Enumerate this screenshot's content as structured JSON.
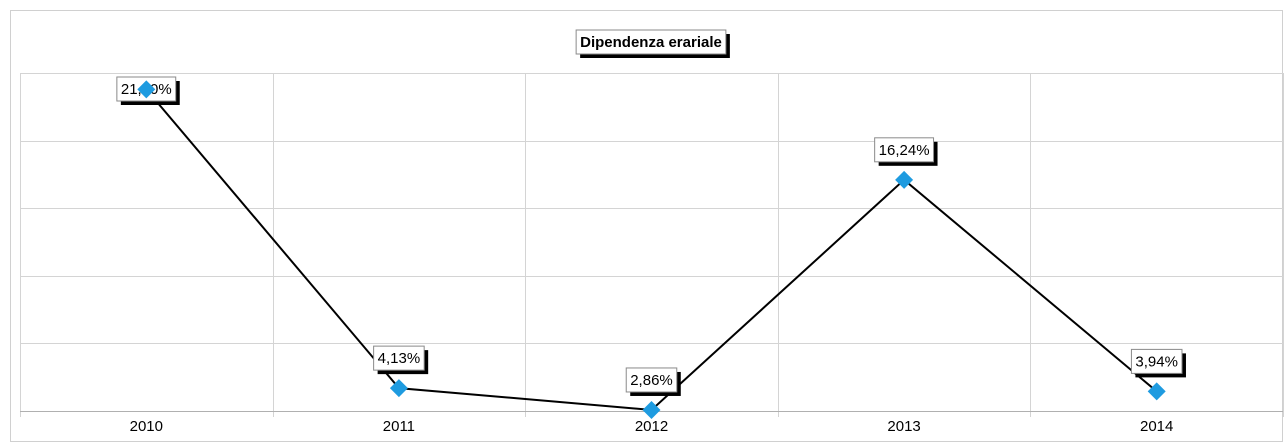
{
  "chart_data": {
    "type": "line",
    "title": "Dipendenza erariale",
    "categories": [
      "2010",
      "2011",
      "2012",
      "2013",
      "2014"
    ],
    "series": [
      {
        "name": "Dipendenza erariale",
        "color": "#1e9be0",
        "values": [
          21.5,
          4.13,
          2.86,
          16.24,
          3.94
        ],
        "value_labels": [
          "21,50%",
          "4,13%",
          "2,86%",
          "16,24%",
          "3,94%"
        ]
      }
    ],
    "ylim": [
      2.8,
      22.45
    ],
    "yticks": [
      2.8,
      6.73,
      10.66,
      14.59,
      18.52,
      22.45
    ],
    "grid": true
  }
}
